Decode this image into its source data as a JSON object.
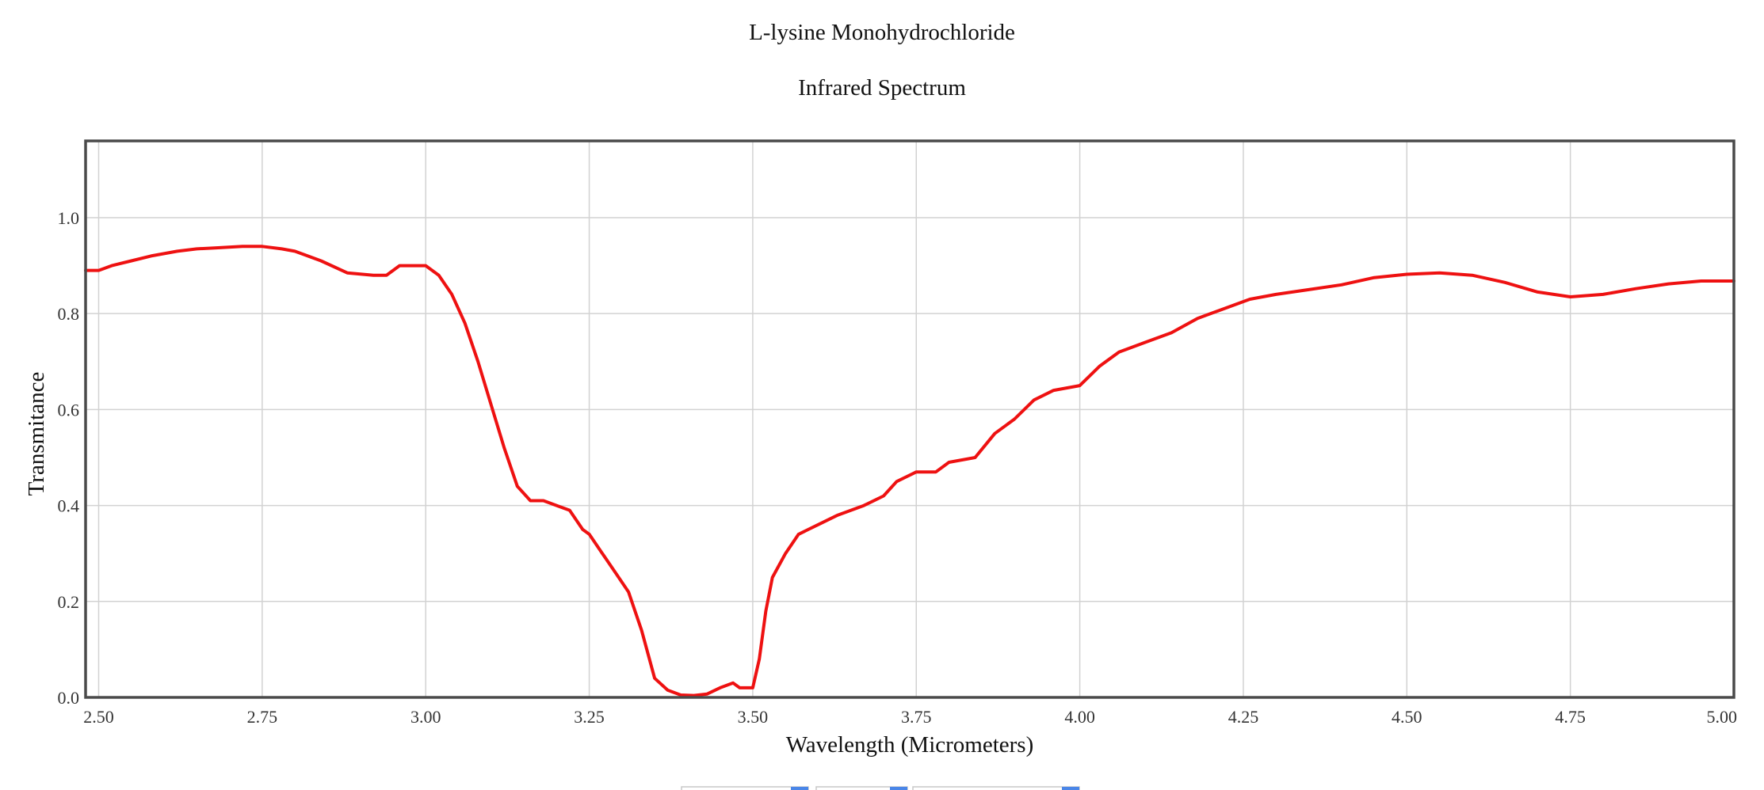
{
  "chart_data": {
    "type": "line",
    "title": "L-lysine Monohydrochloride",
    "subtitle": "Infrared Spectrum",
    "xlabel": "Wavelength (Micrometers)",
    "ylabel": "Transmitance",
    "xlim": [
      2.48,
      5.0
    ],
    "ylim": [
      0,
      1.16
    ],
    "x_ticks": [
      "2.50",
      "2.75",
      "3.00",
      "3.25",
      "3.50",
      "3.75",
      "4.00",
      "4.25",
      "4.50",
      "4.75",
      "5.00"
    ],
    "x_tick_values": [
      2.5,
      2.75,
      3.0,
      3.25,
      3.5,
      3.75,
      4.0,
      4.25,
      4.5,
      4.75,
      5.0
    ],
    "y_ticks": [
      "0.0",
      "0.2",
      "0.4",
      "0.6",
      "0.8",
      "1.0"
    ],
    "y_tick_values": [
      0.0,
      0.2,
      0.4,
      0.6,
      0.8,
      1.0
    ],
    "grid": true,
    "colors": {
      "series": "#ee1111",
      "grid": "#d2d2d2",
      "frame": "#4a4a4a"
    },
    "series": [
      {
        "color": "#ee1111",
        "x": [
          2.48,
          2.5,
          2.52,
          2.55,
          2.58,
          2.62,
          2.65,
          2.68,
          2.72,
          2.75,
          2.78,
          2.8,
          2.84,
          2.88,
          2.92,
          2.94,
          2.96,
          2.98,
          3.0,
          3.02,
          3.04,
          3.06,
          3.08,
          3.1,
          3.12,
          3.14,
          3.16,
          3.18,
          3.2,
          3.22,
          3.24,
          3.25,
          3.27,
          3.29,
          3.31,
          3.33,
          3.35,
          3.37,
          3.39,
          3.41,
          3.43,
          3.45,
          3.47,
          3.48,
          3.5,
          3.51,
          3.52,
          3.53,
          3.55,
          3.57,
          3.6,
          3.63,
          3.67,
          3.7,
          3.72,
          3.75,
          3.78,
          3.8,
          3.84,
          3.87,
          3.9,
          3.93,
          3.96,
          4.0,
          4.03,
          4.06,
          4.1,
          4.14,
          4.18,
          4.22,
          4.26,
          4.3,
          4.35,
          4.4,
          4.45,
          4.5,
          4.55,
          4.6,
          4.65,
          4.7,
          4.75,
          4.8,
          4.85,
          4.9,
          4.95,
          5.0
        ],
        "y": [
          0.89,
          0.89,
          0.9,
          0.91,
          0.92,
          0.93,
          0.935,
          0.937,
          0.94,
          0.94,
          0.935,
          0.93,
          0.91,
          0.885,
          0.88,
          0.88,
          0.9,
          0.9,
          0.9,
          0.88,
          0.84,
          0.78,
          0.7,
          0.61,
          0.52,
          0.44,
          0.41,
          0.41,
          0.4,
          0.39,
          0.35,
          0.34,
          0.3,
          0.26,
          0.22,
          0.14,
          0.04,
          0.015,
          0.005,
          0.004,
          0.007,
          0.02,
          0.03,
          0.02,
          0.02,
          0.08,
          0.18,
          0.25,
          0.3,
          0.34,
          0.36,
          0.38,
          0.4,
          0.42,
          0.45,
          0.47,
          0.47,
          0.49,
          0.5,
          0.55,
          0.58,
          0.62,
          0.64,
          0.65,
          0.69,
          0.72,
          0.74,
          0.76,
          0.79,
          0.81,
          0.83,
          0.84,
          0.85,
          0.86,
          0.875,
          0.882,
          0.885,
          0.88,
          0.865,
          0.845,
          0.835,
          0.84,
          0.852,
          0.862,
          0.868,
          0.868
        ]
      }
    ]
  }
}
